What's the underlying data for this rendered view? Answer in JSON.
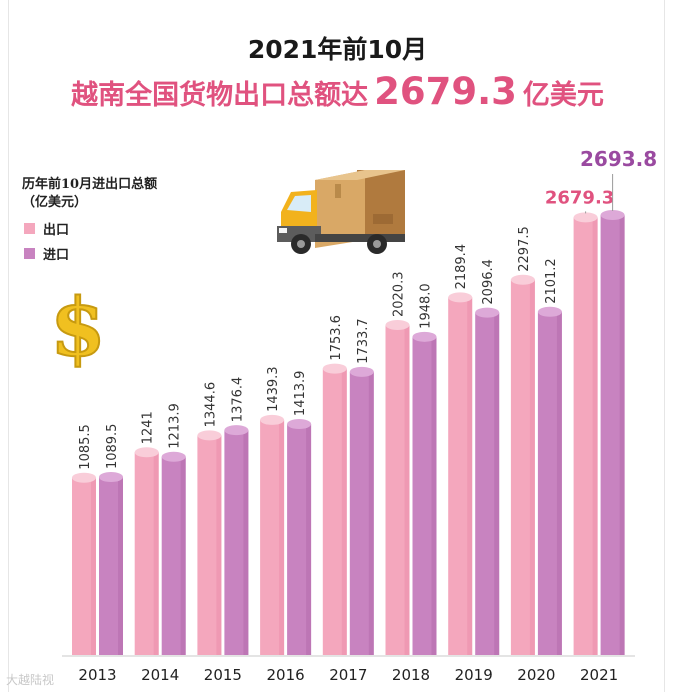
{
  "header": {
    "line1": "2021年前10月",
    "line2_pre": "越南全国货物出口总额达",
    "line2_num": "2679.3",
    "line2_post": "亿美元"
  },
  "legend": {
    "title": "历年前10月进出口总额",
    "unit": "（亿美元）",
    "items": [
      {
        "label": "出口",
        "color": "#f4a7bd"
      },
      {
        "label": "进口",
        "color": "#c883c0"
      }
    ]
  },
  "footer": {
    "watermark": "大越陆视"
  },
  "colors": {
    "export": "#f4a7bd",
    "export_top": "#f9cdd9",
    "export_dark": "#e88aa6",
    "import": "#c883c0",
    "import_top": "#dda9d8",
    "import_dark": "#b066a8",
    "highlight_export": "#e0527f",
    "highlight_import": "#9a4aa0",
    "axis": "#c9c9c9"
  },
  "chart_data": {
    "type": "bar",
    "categories": [
      "2013",
      "2014",
      "2015",
      "2016",
      "2017",
      "2018",
      "2019",
      "2020",
      "2021"
    ],
    "series": [
      {
        "name": "出口",
        "values": [
          1085.5,
          1241,
          1344.6,
          1439.3,
          1753.6,
          2020.3,
          2189.4,
          2297.5,
          2679.3
        ],
        "labels": [
          "1085.5",
          "1241",
          "1344.6",
          "1439.3",
          "1753.6",
          "2020.3",
          "2189.4",
          "2297.5",
          "2679.3"
        ]
      },
      {
        "name": "进口",
        "values": [
          1089.5,
          1213.9,
          1376.4,
          1413.9,
          1733.7,
          1948.0,
          2096.4,
          2101.2,
          2693.8
        ],
        "labels": [
          "1089.5",
          "1213.9",
          "1376.4",
          "1413.9",
          "1733.7",
          "1948.0",
          "2096.4",
          "2101.2",
          "2693.8"
        ]
      }
    ],
    "title": "历年前10月进出口总额",
    "ylabel": "亿美元"
  }
}
